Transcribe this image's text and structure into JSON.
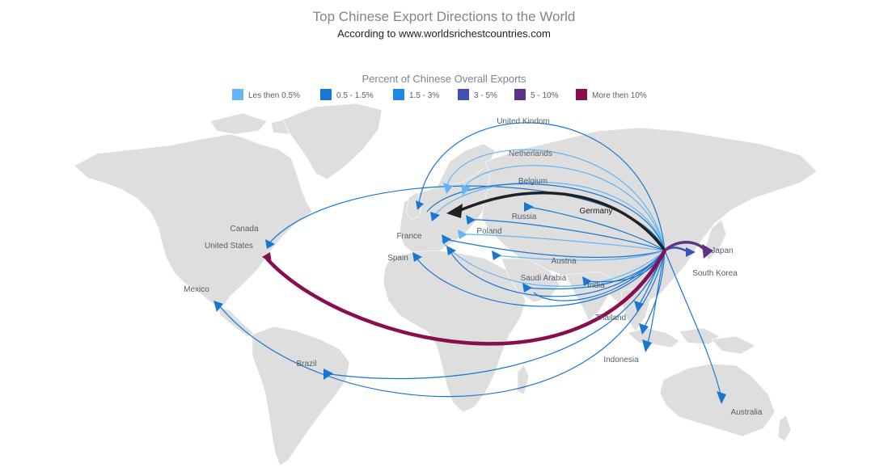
{
  "title": "Top Chinese Export Directions to the World",
  "subtitle": "According to www.worldsrichestcountries.com",
  "legend": {
    "title": "Percent of Chinese Overall Exports",
    "items": [
      {
        "label": "Les then 0.5%",
        "color": "#64b5f6"
      },
      {
        "label": "0.5 - 1.5%",
        "color": "#1976d2"
      },
      {
        "label": "1.5 - 3%",
        "color": "#1e88e5"
      },
      {
        "label": "3 - 5%",
        "color": "#3f51b5"
      },
      {
        "label": "5 - 10%",
        "color": "#5c3386"
      },
      {
        "label": "More then 10%",
        "color": "#880e4f"
      }
    ]
  },
  "map_data": {
    "origin": "China",
    "connections": [
      {
        "name": "United Kindom",
        "color": "#1976d2",
        "width": 1.2
      },
      {
        "name": "Netherlands",
        "color": "#64b5f6",
        "width": 1.2
      },
      {
        "name": "Belgium",
        "color": "#64b5f6",
        "width": 1.2
      },
      {
        "name": "Germany",
        "color": "#212121",
        "width": 3.5
      },
      {
        "name": "Russia",
        "color": "#1976d2",
        "width": 1.2
      },
      {
        "name": "Poland",
        "color": "#64b5f6",
        "width": 1.2
      },
      {
        "name": "France",
        "color": "#1976d2",
        "width": 1.2
      },
      {
        "name": "Spain",
        "color": "#1976d2",
        "width": 1.2
      },
      {
        "name": "Austria",
        "color": "#64b5f6",
        "width": 1.2
      },
      {
        "name": "Saudi Arabia",
        "color": "#1976d2",
        "width": 1.2
      },
      {
        "name": "India",
        "color": "#1976d2",
        "width": 1.2
      },
      {
        "name": "Thailand",
        "color": "#1976d2",
        "width": 1.2
      },
      {
        "name": "Indonesia",
        "color": "#1976d2",
        "width": 1.2
      },
      {
        "name": "Australia",
        "color": "#1976d2",
        "width": 1.2
      },
      {
        "name": "Japan",
        "color": "#5c3386",
        "width": 3.5
      },
      {
        "name": "South Korea",
        "color": "#3f51b5",
        "width": 2.5
      },
      {
        "name": "Canada",
        "color": "#1976d2",
        "width": 1.2
      },
      {
        "name": "United States",
        "color": "#880e4f",
        "width": 4.5
      },
      {
        "name": "Mexico",
        "color": "#1976d2",
        "width": 1.2
      },
      {
        "name": "Brazil",
        "color": "#1976d2",
        "width": 1.2
      }
    ]
  }
}
